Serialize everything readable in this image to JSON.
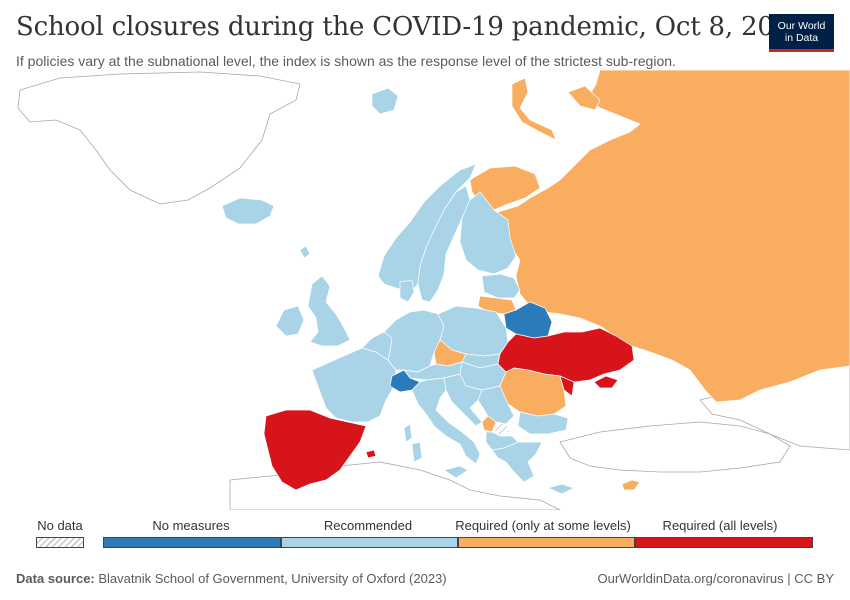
{
  "header": {
    "title": "School closures during the COVID-19 pandemic, Oct 8, 2020",
    "subtitle": "If policies vary at the subnational level, the index is shown as the response level of the strictest sub-region."
  },
  "logo": {
    "line1": "Our World",
    "line2": "in Data"
  },
  "colors": {
    "no_measures": "#2b7bba",
    "recommended": "#a9d3e7",
    "required_some": "#f8ad60",
    "required_all": "#d6141a",
    "no_data": "#ffffff",
    "outline": "#a8a8a8"
  },
  "legend": {
    "no_data": "No data",
    "categories": [
      "No measures",
      "Recommended",
      "Required (only at some levels)",
      "Required (all levels)"
    ]
  },
  "regions": {
    "russia": "required_some",
    "finland": "recommended",
    "scandinavia": "recommended",
    "iceland": "recommended",
    "uk": "recommended",
    "ireland": "recommended",
    "france": "recommended",
    "spain_portugal": "required_all",
    "central_europe": "recommended",
    "switzerland": "no_measures",
    "belarus": "no_measures",
    "ukraine": "required_all",
    "moldova": "required_all",
    "lithuania": "required_some",
    "czechia": "required_some",
    "romania": "required_some",
    "balkans": "recommended",
    "greece": "recommended",
    "montenegro": "required_some",
    "kosovo": "no_data",
    "cyprus": "required_some",
    "italy": "recommended",
    "sardinia_sicily": "recommended"
  },
  "footer": {
    "source_label": "Data source:",
    "source_text": "Blavatnik School of Government, University of Oxford (2023)",
    "right_text": "OurWorldinData.org/coronavirus | CC BY"
  }
}
